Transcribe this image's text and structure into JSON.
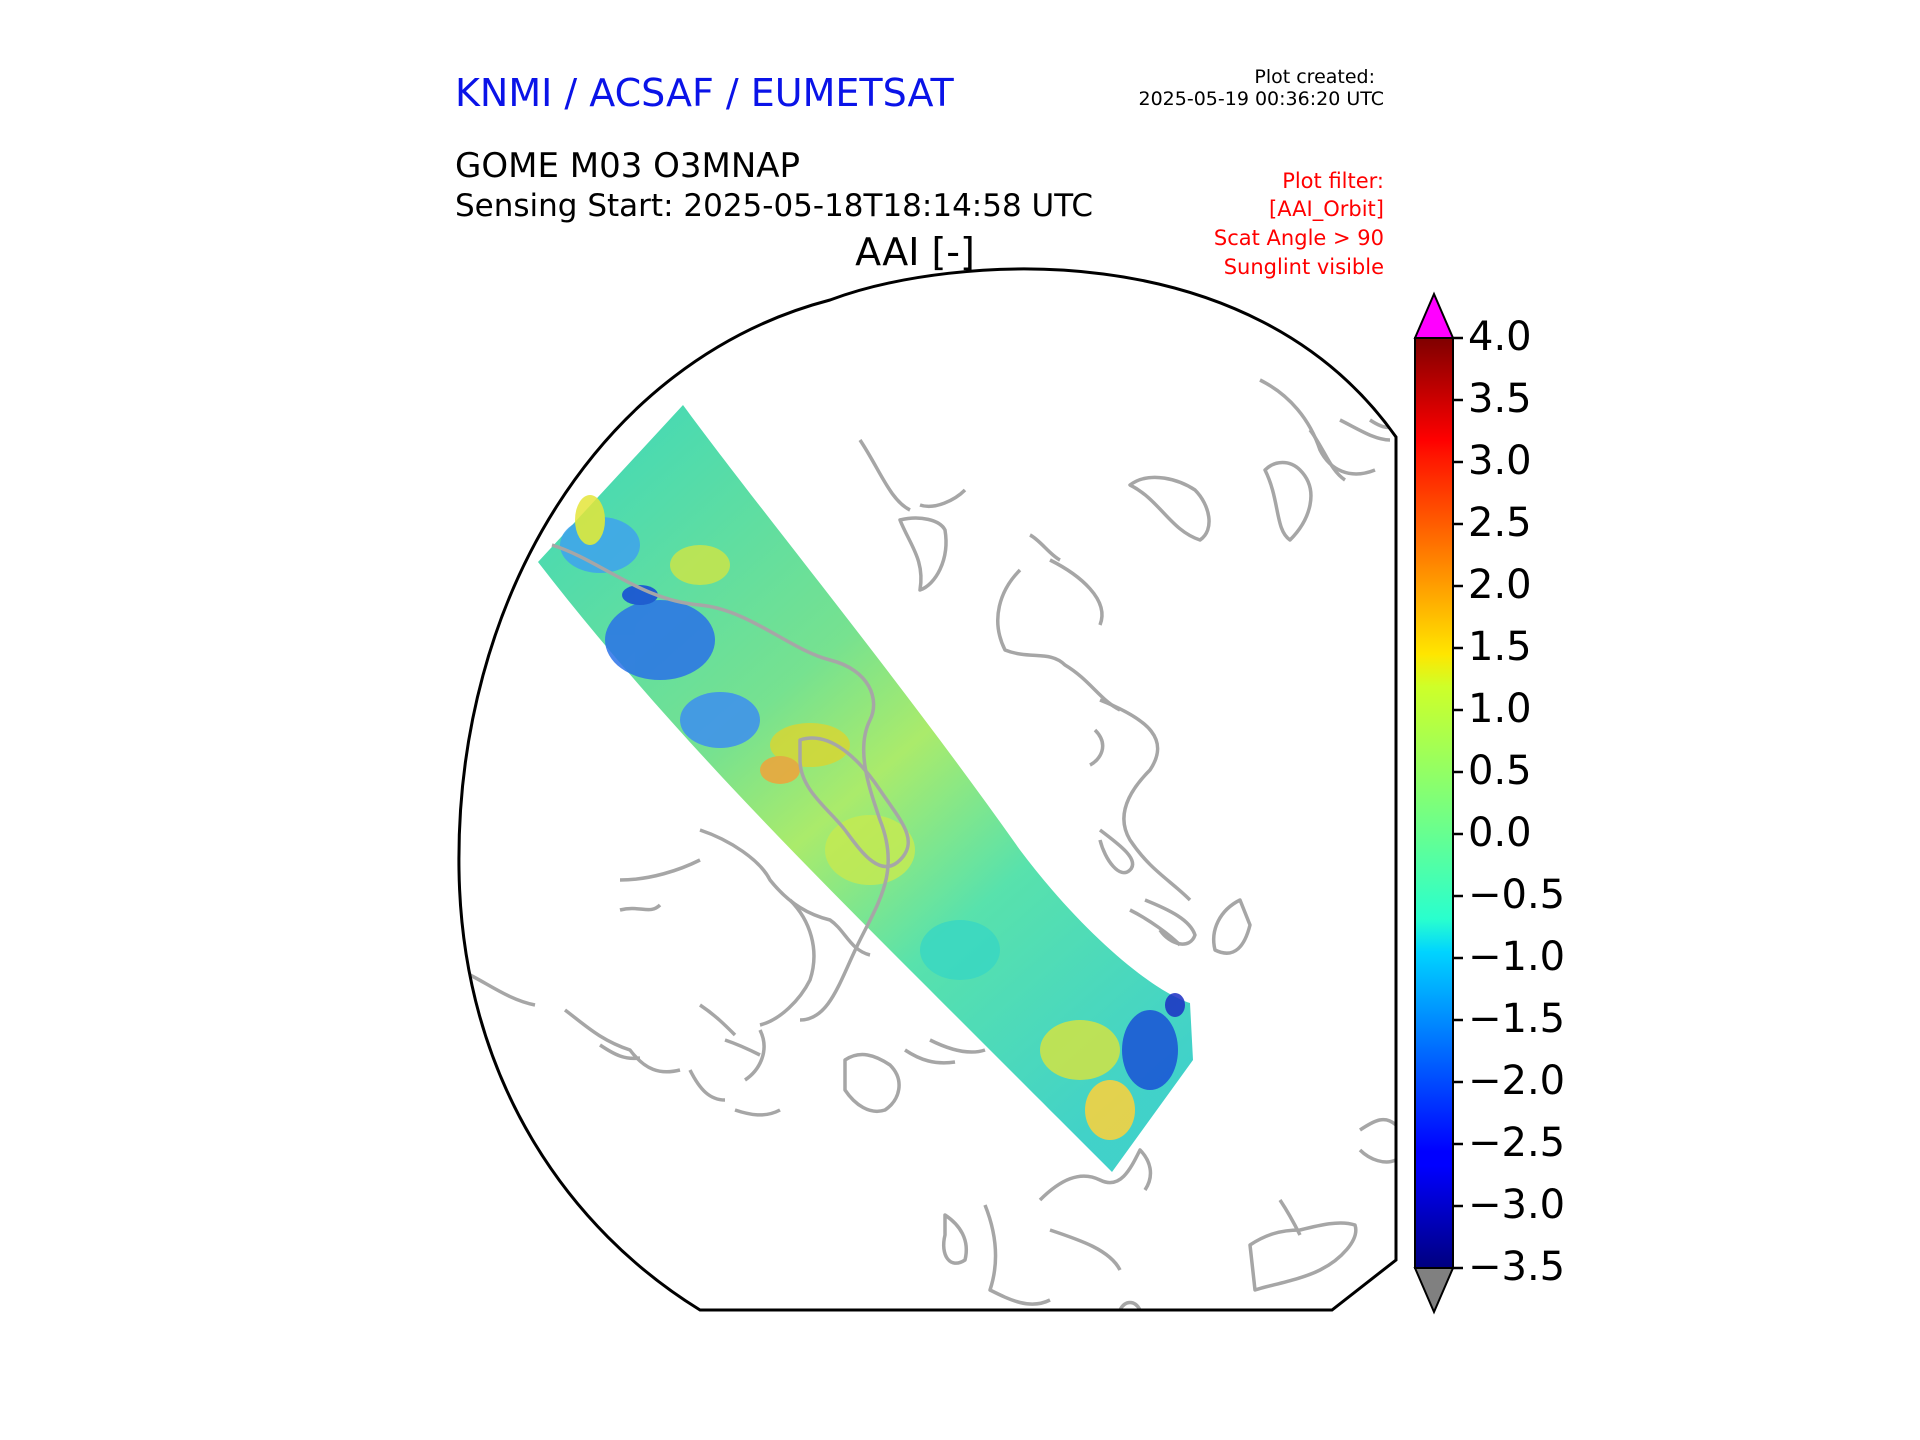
{
  "header": {
    "organization": "KNMI / ACSAF / EUMETSAT",
    "plot_created_label": "Plot created:",
    "plot_created_value": "2025-05-19 00:36:20 UTC",
    "product": "GOME M03 O3MNAP",
    "sensing_start": "Sensing Start: 2025-05-18T18:14:58 UTC",
    "parameter": "AAI [-]"
  },
  "plot_filter": [
    "Plot filter:",
    "[AAI_Orbit]",
    "Scat Angle > 90",
    "Sunglint visible"
  ],
  "map": {
    "projection": "north-polar stereographic",
    "coastline_color": "#a6a6a6",
    "boundary_color": "#000000",
    "swath_dominant_range": "-1.0 to 1.0"
  },
  "colorbar": {
    "colormap": "jet",
    "min": -3.5,
    "max": 4.0,
    "extend_over_color": "#ff00ff",
    "extend_under_color": "#808080",
    "ticks": [
      "4.0",
      "3.5",
      "3.0",
      "2.5",
      "2.0",
      "1.5",
      "1.0",
      "0.5",
      "0.0",
      "−0.5",
      "−1.0",
      "−1.5",
      "−2.0",
      "−2.5",
      "−3.0",
      "−3.5"
    ]
  }
}
